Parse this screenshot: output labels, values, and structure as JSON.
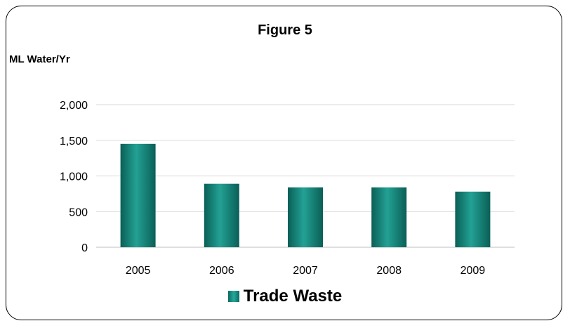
{
  "chart_data": {
    "type": "bar",
    "title": "Figure 5",
    "ylabel": "ML Water/Yr",
    "xlabel": "",
    "categories": [
      "2005",
      "2006",
      "2007",
      "2008",
      "2009"
    ],
    "series": [
      {
        "name": "Trade Waste",
        "values": [
          1450,
          890,
          840,
          840,
          780
        ]
      }
    ],
    "ylim": [
      0,
      2000
    ],
    "yticks": [
      0,
      500,
      1000,
      1500,
      2000
    ],
    "ytick_labels": [
      "0",
      "500",
      "1,000",
      "1,500",
      "2,000"
    ],
    "grid": true,
    "legend_position": "bottom",
    "colors": {
      "bar": "#12857a",
      "bar_dark": "#0a5f57",
      "grid": "#d9d9d9",
      "axis": "#bfbfbf"
    }
  }
}
